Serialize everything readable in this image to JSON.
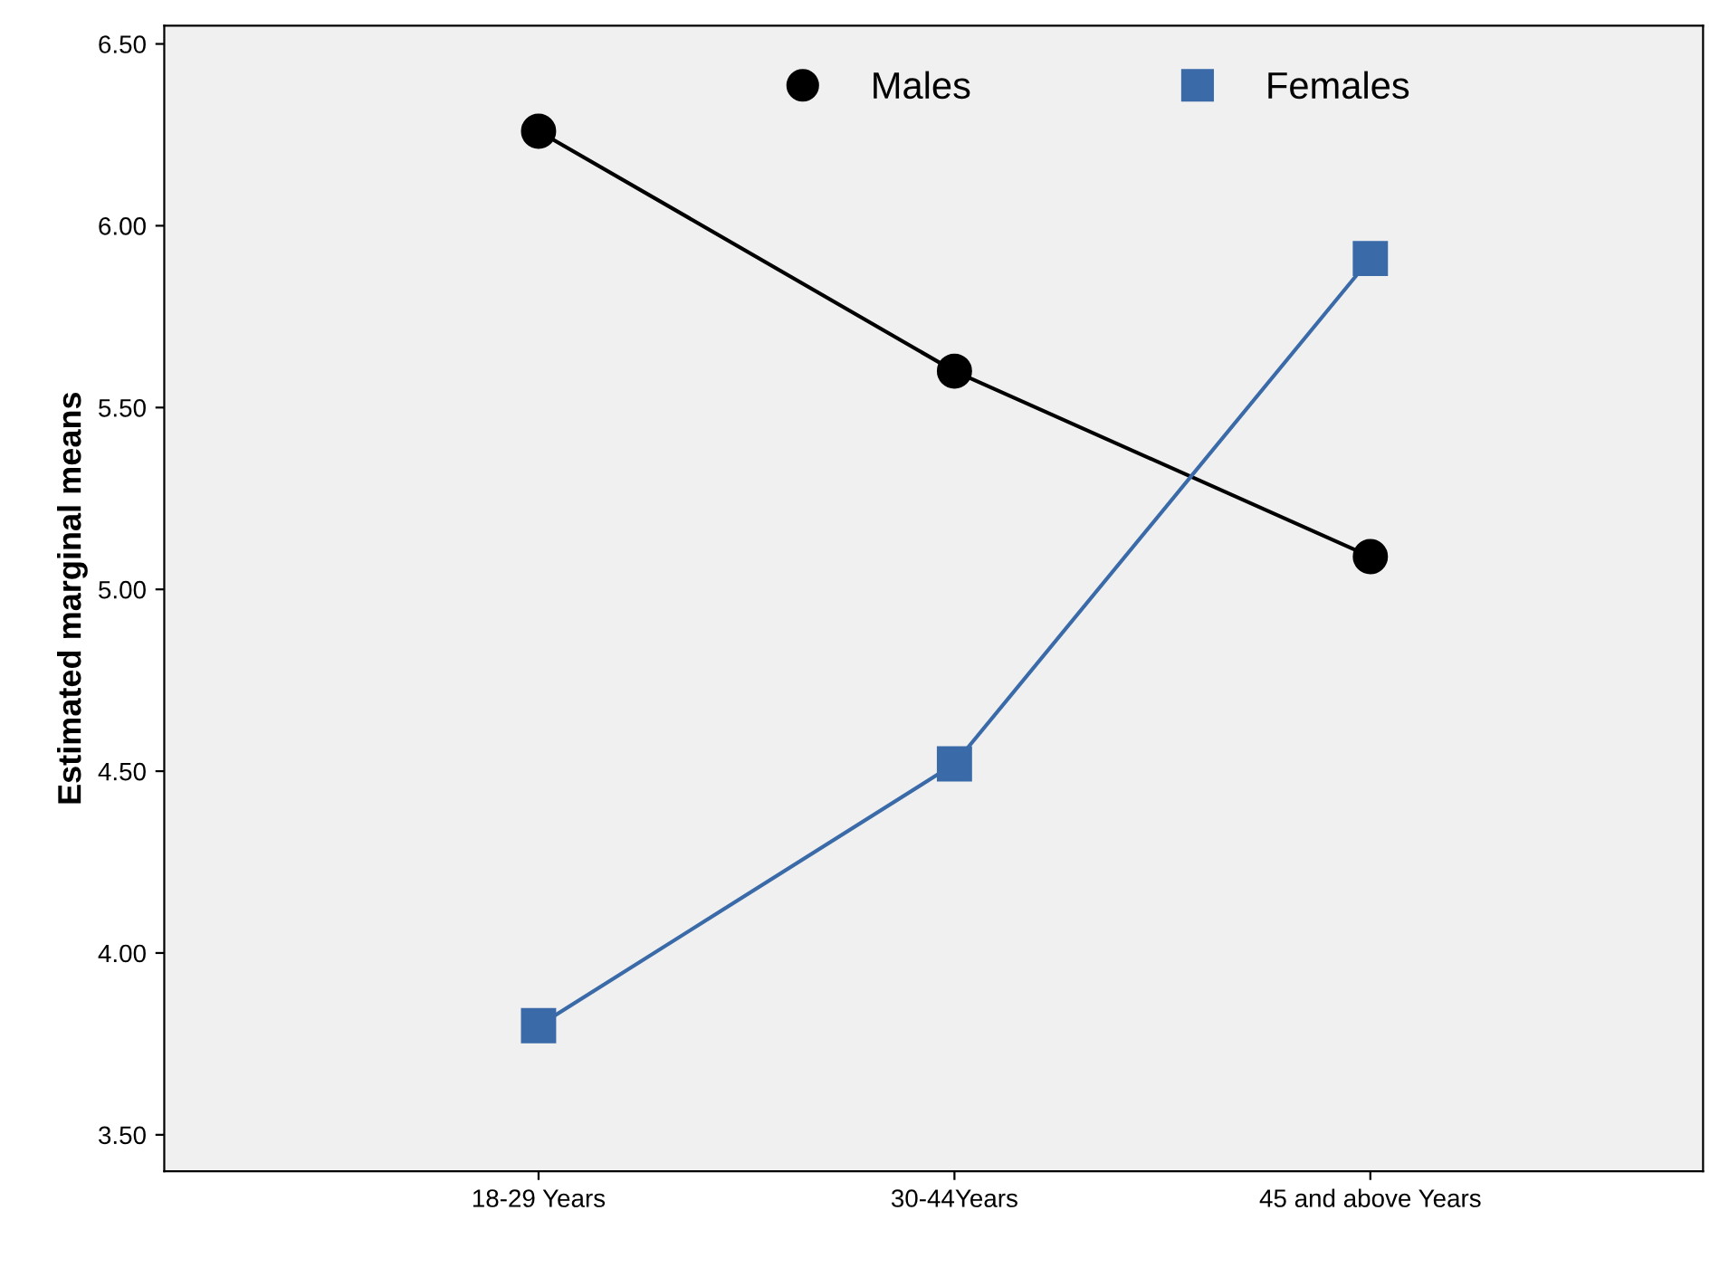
{
  "chart_data": {
    "type": "line",
    "ylabel": "Estimated marginal means",
    "categories": [
      "18-29 Years",
      "30-44Years",
      "45 and above Years"
    ],
    "series": [
      {
        "name": "Males",
        "color": "#000000",
        "marker": "circle",
        "values": [
          6.26,
          5.6,
          5.09
        ]
      },
      {
        "name": "Females",
        "color": "#3a6aa8",
        "marker": "square",
        "values": [
          3.8,
          4.52,
          5.91
        ]
      }
    ],
    "ylim": [
      3.4,
      6.55
    ],
    "yticks": [
      {
        "value": 3.5,
        "label": "3.50"
      },
      {
        "value": 4.0,
        "label": "4.00"
      },
      {
        "value": 4.5,
        "label": "4.50"
      },
      {
        "value": 5.0,
        "label": "5.00"
      },
      {
        "value": 5.5,
        "label": "5.50"
      },
      {
        "value": 6.0,
        "label": "6.00"
      },
      {
        "value": 6.5,
        "label": "6.50"
      }
    ],
    "grid": false,
    "legend": "top"
  }
}
